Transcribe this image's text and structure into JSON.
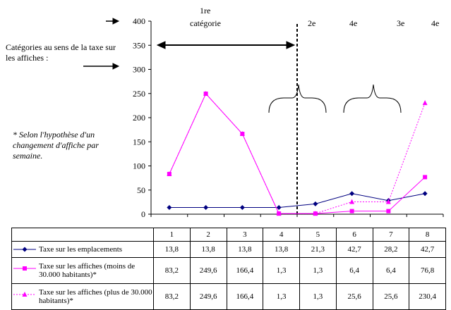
{
  "intro": {
    "label": "Catégories au sens de la taxe sur les affiches :",
    "note": "* Selon l'hypothèse d'un changement d'affiche par semaine."
  },
  "chart_data": {
    "type": "line",
    "categories": [
      "1",
      "2",
      "3",
      "4",
      "5",
      "6",
      "7",
      "8"
    ],
    "ylim": [
      0,
      400
    ],
    "yticks": [
      0,
      50,
      100,
      150,
      200,
      250,
      300,
      350,
      400
    ],
    "legend": "table-below",
    "grid": false,
    "series": [
      {
        "name": "Taxe sur les emplacements",
        "values": [
          13.8,
          13.8,
          13.8,
          13.8,
          21.3,
          42.7,
          28.2,
          42.7
        ],
        "labels": [
          "13,8",
          "13,8",
          "13,8",
          "13,8",
          "21,3",
          "42,7",
          "28,2",
          "42,7"
        ],
        "color": "#000080",
        "marker": "diamond",
        "dash": "solid"
      },
      {
        "name": "Taxe sur les affiches (moins de 30.000 habitants)*",
        "values": [
          83.2,
          249.6,
          166.4,
          1.3,
          1.3,
          6.4,
          6.4,
          76.8
        ],
        "labels": [
          "83,2",
          "249,6",
          "166,4",
          "1,3",
          "1,3",
          "6,4",
          "6,4",
          "76,8"
        ],
        "color": "#ff00ff",
        "marker": "square",
        "dash": "solid"
      },
      {
        "name": "Taxe sur les affiches (plus de 30.000 habitants)*",
        "values": [
          83.2,
          249.6,
          166.4,
          1.3,
          1.3,
          25.6,
          25.6,
          230.4
        ],
        "labels": [
          "83,2",
          "249,6",
          "166,4",
          "1,3",
          "1,3",
          "25,6",
          "25,6",
          "230,4"
        ],
        "color": "#ff00ff",
        "marker": "triangle",
        "dash": "dotted"
      }
    ],
    "annotations": {
      "cat1_line1": "1re",
      "cat1_line2": "catégorie",
      "cat2": "2e",
      "cat4a": "4e",
      "cat3": "3e",
      "cat4b": "4e"
    }
  }
}
